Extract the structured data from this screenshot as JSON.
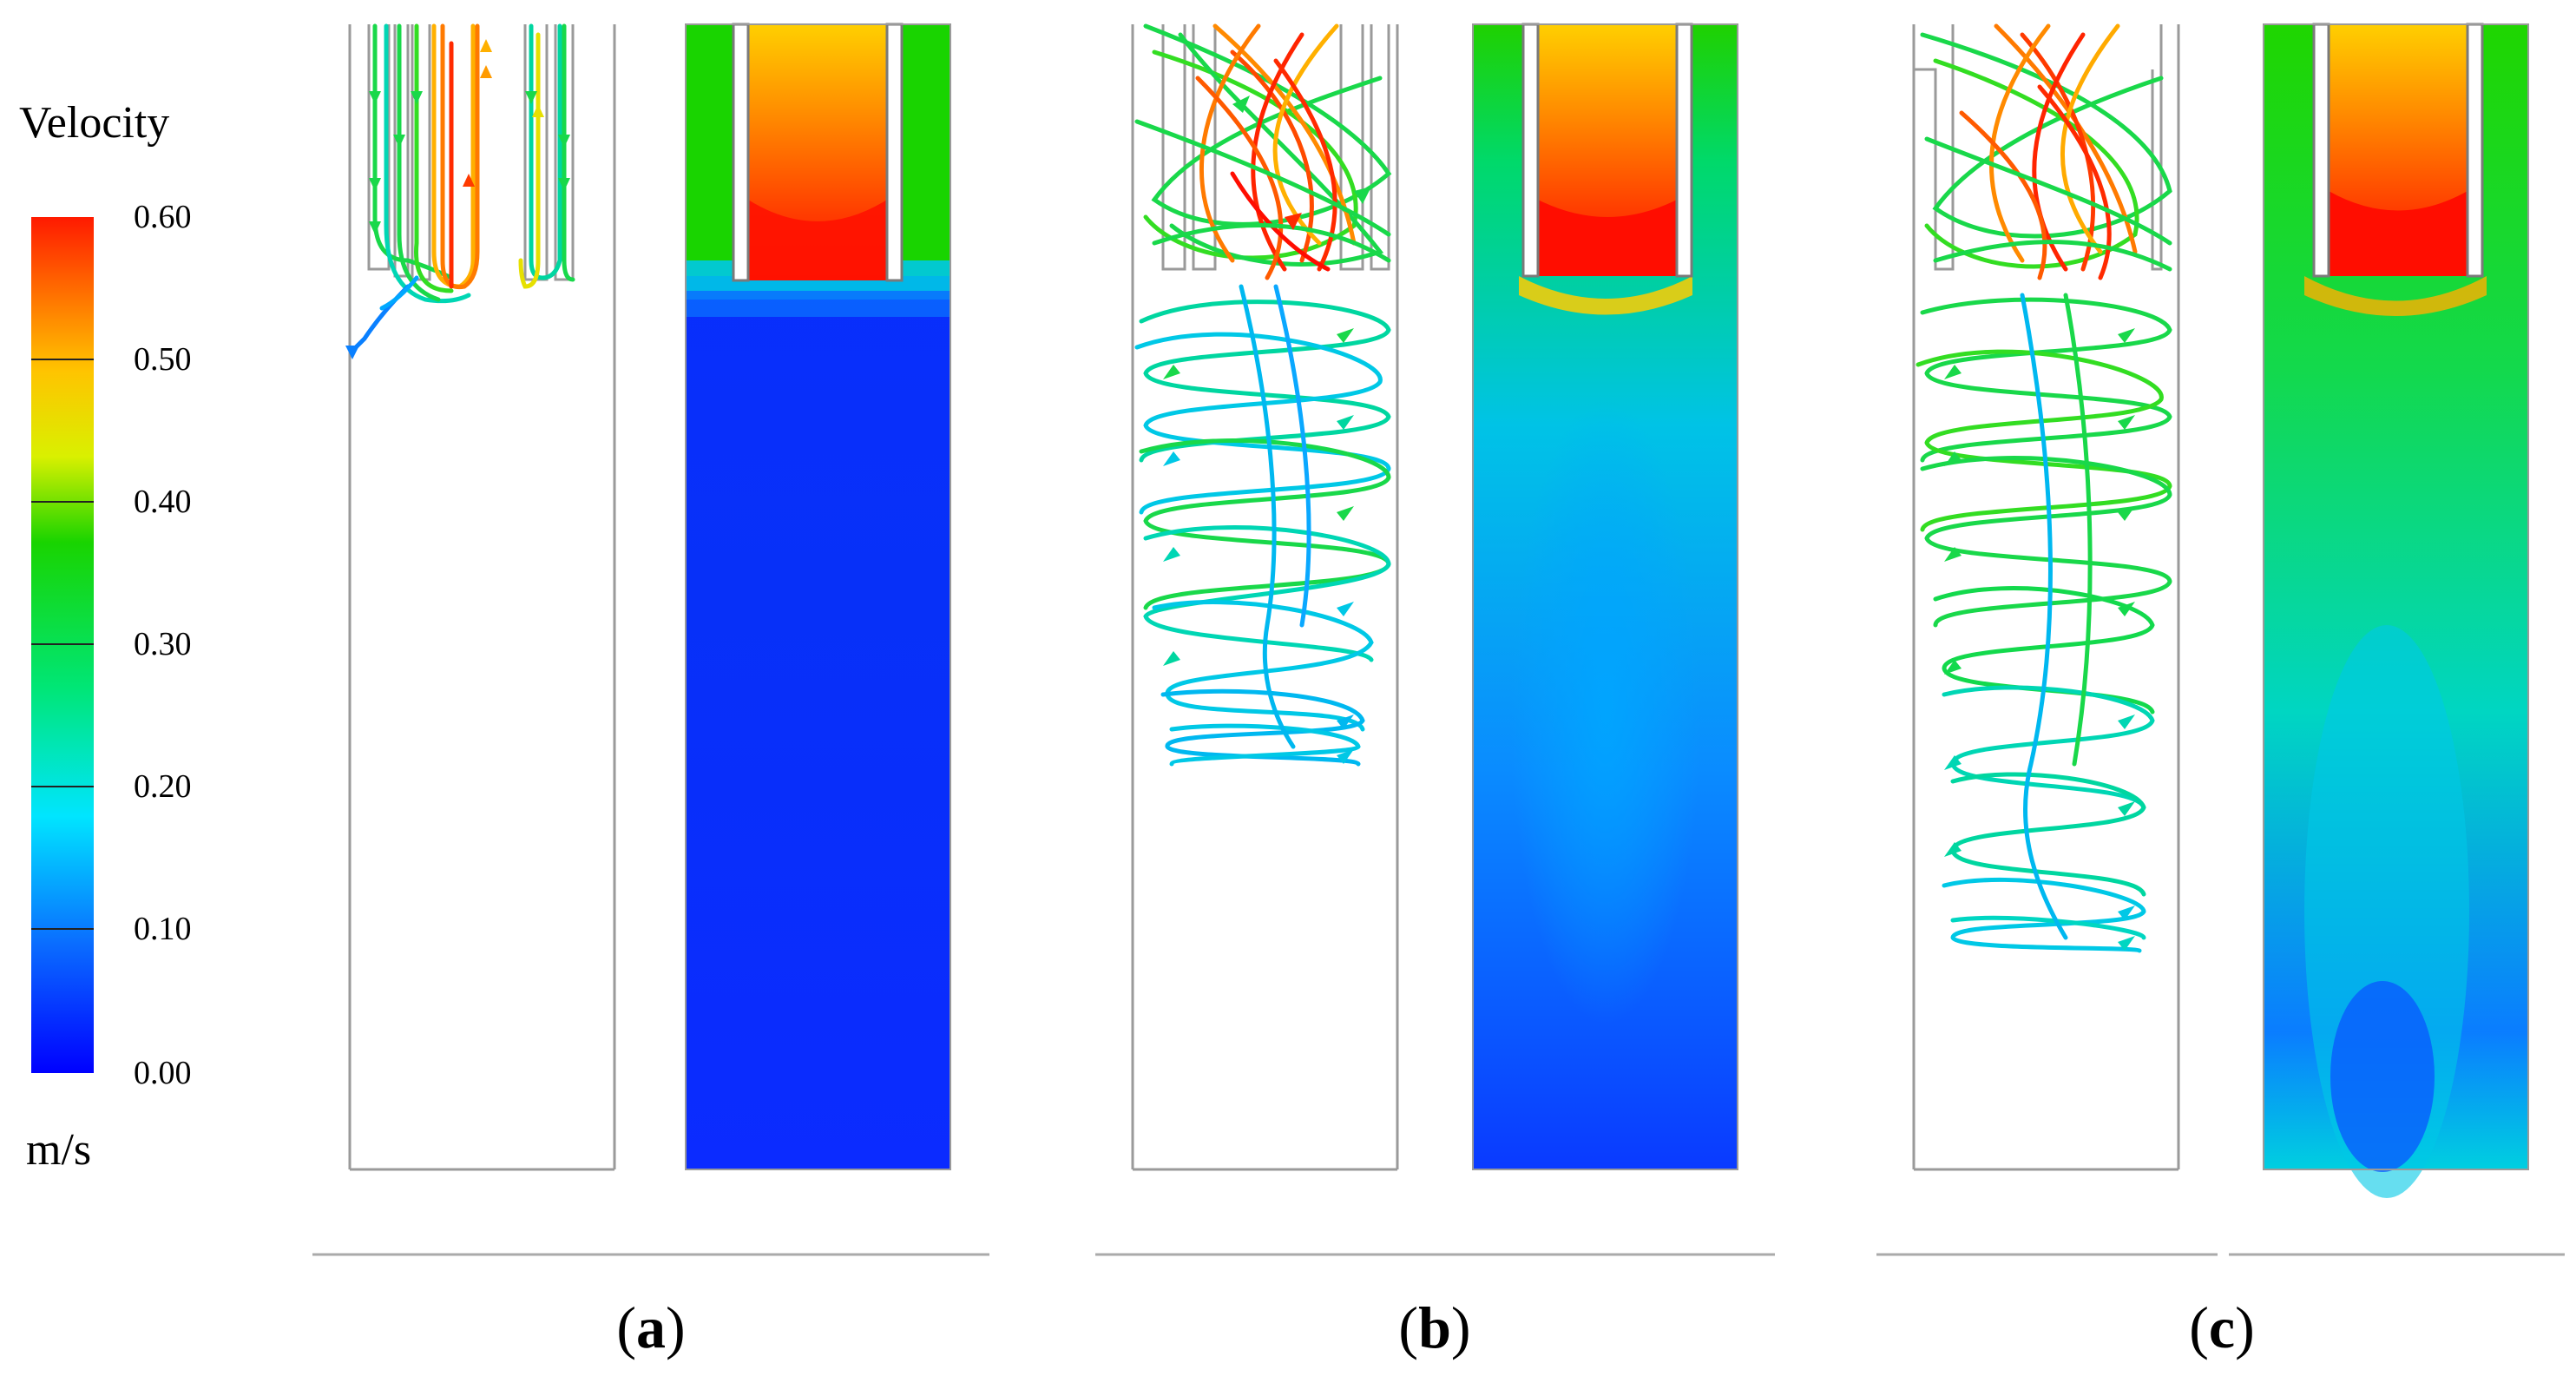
{
  "legend": {
    "title": "Velocity",
    "unit": "m/s",
    "min": 0.0,
    "max": 0.6,
    "ticks": [
      "0.60",
      "0.50",
      "0.40",
      "0.30",
      "0.20",
      "0.10",
      "0.00"
    ],
    "colors": [
      "#0000ff",
      "#0a6cff",
      "#00e5ff",
      "#00e676",
      "#19d400",
      "#d9f000",
      "#ffc400",
      "#ff7a00",
      "#ff1a00"
    ]
  },
  "panels": [
    {
      "id": "a",
      "label_open": "(",
      "label_letter": "a",
      "label_close": ")"
    },
    {
      "id": "b",
      "label_open": "(",
      "label_letter": "b",
      "label_close": ")"
    },
    {
      "id": "c",
      "label_open": "(",
      "label_letter": "c",
      "label_close": ")"
    }
  ]
}
